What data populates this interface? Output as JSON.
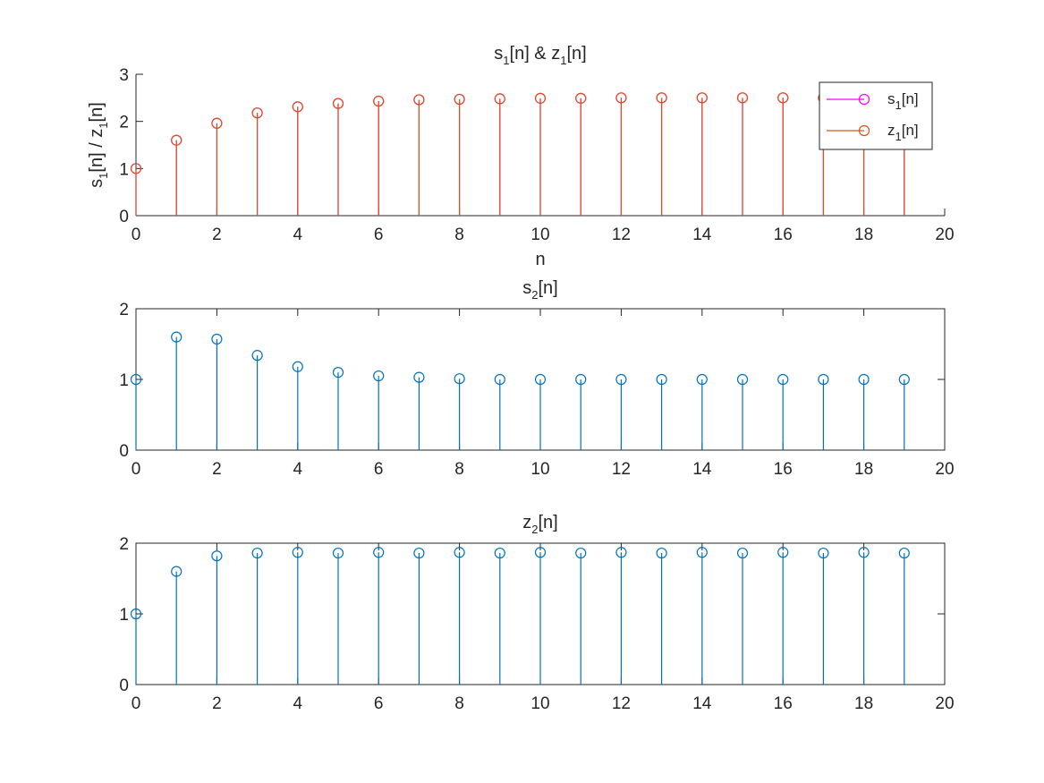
{
  "chart_data": [
    {
      "type": "stem",
      "title": {
        "base": "s",
        "sub": "1",
        "mid": "[n] & z",
        "sub2": "1",
        "tail": "[n]"
      },
      "xlabel": "n",
      "ylabel": {
        "base": "s",
        "sub": "1",
        "mid": "[n] / z",
        "sub2": "1",
        "tail": "[n]"
      },
      "xlim": [
        0,
        20
      ],
      "ylim": [
        0,
        3
      ],
      "xticks": [
        "0",
        "2",
        "4",
        "6",
        "8",
        "10",
        "12",
        "14",
        "16",
        "18",
        "20"
      ],
      "yticks": [
        "0",
        "1",
        "2",
        "3"
      ],
      "box": false,
      "legend_placement": "top-right",
      "series": [
        {
          "name": {
            "base": "s",
            "sub": "1",
            "tail": "[n]"
          },
          "color": "#FF00FF",
          "x": [
            0,
            1,
            2,
            3,
            4,
            5,
            6,
            7,
            8,
            9,
            10,
            11,
            12,
            13,
            14,
            15,
            16,
            17,
            18,
            19
          ],
          "values": [
            1.0,
            1.6,
            1.96,
            2.18,
            2.31,
            2.38,
            2.43,
            2.46,
            2.47,
            2.48,
            2.49,
            2.49,
            2.5,
            2.5,
            2.5,
            2.5,
            2.5,
            2.5,
            2.5,
            2.5
          ]
        },
        {
          "name": {
            "base": "z",
            "sub": "1",
            "tail": "[n]"
          },
          "color": "#D95319",
          "x": [
            0,
            1,
            2,
            3,
            4,
            5,
            6,
            7,
            8,
            9,
            10,
            11,
            12,
            13,
            14,
            15,
            16,
            17,
            18,
            19
          ],
          "values": [
            1.0,
            1.6,
            1.96,
            2.18,
            2.31,
            2.38,
            2.43,
            2.46,
            2.47,
            2.48,
            2.49,
            2.49,
            2.5,
            2.5,
            2.5,
            2.5,
            2.5,
            2.5,
            2.5,
            2.5
          ]
        }
      ]
    },
    {
      "type": "stem",
      "title": {
        "base": "s",
        "sub": "2",
        "tail": "[n]"
      },
      "xlim": [
        0,
        20
      ],
      "ylim": [
        0,
        2
      ],
      "xticks": [
        "0",
        "2",
        "4",
        "6",
        "8",
        "10",
        "12",
        "14",
        "16",
        "18",
        "20"
      ],
      "yticks": [
        "0",
        "1",
        "2"
      ],
      "box": true,
      "series": [
        {
          "color": "#0072BD",
          "x": [
            0,
            1,
            2,
            3,
            4,
            5,
            6,
            7,
            8,
            9,
            10,
            11,
            12,
            13,
            14,
            15,
            16,
            17,
            18,
            19
          ],
          "values": [
            1.0,
            1.6,
            1.57,
            1.34,
            1.18,
            1.1,
            1.05,
            1.03,
            1.01,
            1.0,
            1.0,
            1.0,
            1.0,
            1.0,
            1.0,
            1.0,
            1.0,
            1.0,
            1.0,
            1.0
          ]
        }
      ]
    },
    {
      "type": "stem",
      "title": {
        "base": "z",
        "sub": "2",
        "tail": "[n]"
      },
      "xlim": [
        0,
        20
      ],
      "ylim": [
        0,
        2
      ],
      "xticks": [
        "0",
        "2",
        "4",
        "6",
        "8",
        "10",
        "12",
        "14",
        "16",
        "18",
        "20"
      ],
      "yticks": [
        "0",
        "1",
        "2"
      ],
      "box": true,
      "series": [
        {
          "color": "#0072BD",
          "x": [
            0,
            1,
            2,
            3,
            4,
            5,
            6,
            7,
            8,
            9,
            10,
            11,
            12,
            13,
            14,
            15,
            16,
            17,
            18,
            19
          ],
          "values": [
            1.0,
            1.6,
            1.82,
            1.86,
            1.87,
            1.86,
            1.87,
            1.86,
            1.87,
            1.86,
            1.87,
            1.86,
            1.87,
            1.86,
            1.87,
            1.86,
            1.87,
            1.86,
            1.87,
            1.86
          ]
        }
      ]
    }
  ]
}
